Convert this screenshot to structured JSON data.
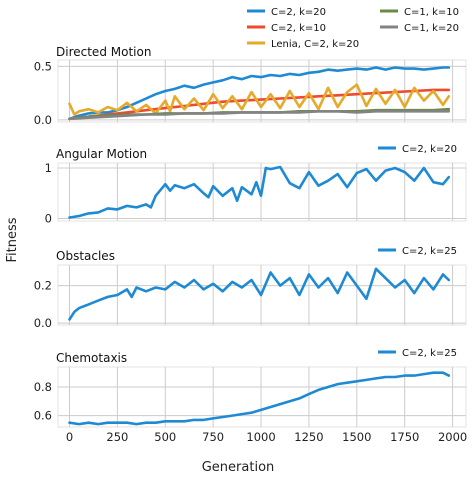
{
  "figure": {
    "ylabel": "Fitness",
    "xlabel": "Generation",
    "xticks": [
      0,
      250,
      500,
      750,
      1000,
      1250,
      1500,
      1750,
      2000
    ],
    "xlim": [
      -60,
      2070
    ],
    "colors": {
      "blue": "#1f8ad4",
      "red": "#ef4a2e",
      "gold": "#e6aa2a",
      "green": "#6a8a45",
      "gray": "#838383",
      "panel_bg": "#ffffff",
      "grid": "#cccccc"
    }
  },
  "chart_data": [
    {
      "type": "line",
      "title": "Directed Motion",
      "ylim": [
        -0.02,
        0.56
      ],
      "yticks": [
        0.0,
        0.5
      ],
      "ytick_labels": [
        "0.0",
        "0.5"
      ],
      "grid": true,
      "legend": {
        "placement": "top-right-outside",
        "entries": [
          {
            "label": "C=2, k=20",
            "color": "#1f8ad4"
          },
          {
            "label": "C=1, k=10",
            "color": "#6a8a45"
          },
          {
            "label": "C=2, k=10",
            "color": "#ef4a2e"
          },
          {
            "label": "C=1, k=20",
            "color": "#838383"
          },
          {
            "label": "Lenia, C=2, k=20",
            "color": "#e6aa2a"
          }
        ]
      },
      "series": [
        {
          "name": "C=2, k=20",
          "color": "#1f8ad4",
          "x": [
            0,
            50,
            100,
            150,
            200,
            250,
            300,
            350,
            400,
            450,
            500,
            550,
            600,
            650,
            700,
            750,
            800,
            850,
            900,
            950,
            1000,
            1050,
            1100,
            1150,
            1200,
            1250,
            1300,
            1350,
            1400,
            1450,
            1500,
            1550,
            1600,
            1650,
            1700,
            1750,
            1800,
            1850,
            1900,
            1950,
            1980
          ],
          "values": [
            0.01,
            0.04,
            0.06,
            0.07,
            0.07,
            0.09,
            0.12,
            0.16,
            0.2,
            0.24,
            0.27,
            0.29,
            0.32,
            0.3,
            0.33,
            0.35,
            0.37,
            0.4,
            0.38,
            0.41,
            0.4,
            0.42,
            0.41,
            0.43,
            0.42,
            0.44,
            0.45,
            0.47,
            0.46,
            0.47,
            0.48,
            0.47,
            0.49,
            0.47,
            0.49,
            0.48,
            0.48,
            0.47,
            0.48,
            0.49,
            0.49
          ]
        },
        {
          "name": "C=2, k=10",
          "color": "#ef4a2e",
          "x": [
            0,
            100,
            200,
            300,
            400,
            500,
            600,
            700,
            800,
            900,
            1000,
            1100,
            1200,
            1300,
            1400,
            1500,
            1600,
            1700,
            1800,
            1900,
            1980
          ],
          "values": [
            0.01,
            0.03,
            0.05,
            0.07,
            0.09,
            0.11,
            0.13,
            0.15,
            0.17,
            0.18,
            0.19,
            0.2,
            0.21,
            0.22,
            0.23,
            0.24,
            0.25,
            0.26,
            0.27,
            0.28,
            0.28
          ]
        },
        {
          "name": "Lenia, C=2, k=20",
          "color": "#e6aa2a",
          "x": [
            0,
            25,
            50,
            100,
            150,
            200,
            250,
            300,
            350,
            400,
            450,
            500,
            525,
            550,
            600,
            650,
            700,
            750,
            800,
            850,
            900,
            950,
            1000,
            1050,
            1100,
            1150,
            1200,
            1250,
            1300,
            1350,
            1400,
            1450,
            1500,
            1550,
            1600,
            1650,
            1700,
            1750,
            1800,
            1850,
            1900,
            1950,
            1980
          ],
          "values": [
            0.15,
            0.05,
            0.08,
            0.1,
            0.07,
            0.12,
            0.09,
            0.16,
            0.08,
            0.14,
            0.06,
            0.18,
            0.08,
            0.22,
            0.1,
            0.2,
            0.09,
            0.24,
            0.11,
            0.22,
            0.1,
            0.26,
            0.12,
            0.24,
            0.11,
            0.27,
            0.12,
            0.25,
            0.1,
            0.3,
            0.12,
            0.26,
            0.33,
            0.13,
            0.29,
            0.15,
            0.28,
            0.12,
            0.3,
            0.18,
            0.27,
            0.14,
            0.22
          ]
        },
        {
          "name": "C=1, k=10",
          "color": "#6a8a45",
          "x": [
            0,
            100,
            200,
            300,
            400,
            500,
            600,
            700,
            800,
            900,
            1000,
            1100,
            1200,
            1300,
            1400,
            1500,
            1600,
            1700,
            1800,
            1900,
            1980
          ],
          "values": [
            0.01,
            0.03,
            0.04,
            0.05,
            0.05,
            0.06,
            0.06,
            0.06,
            0.07,
            0.07,
            0.07,
            0.07,
            0.08,
            0.08,
            0.08,
            0.08,
            0.09,
            0.09,
            0.09,
            0.09,
            0.1
          ]
        },
        {
          "name": "C=1, k=20",
          "color": "#838383",
          "x": [
            0,
            100,
            200,
            300,
            400,
            500,
            600,
            700,
            800,
            900,
            1000,
            1100,
            1200,
            1300,
            1400,
            1500,
            1600,
            1700,
            1800,
            1900,
            1980
          ],
          "values": [
            0.01,
            0.02,
            0.03,
            0.04,
            0.05,
            0.05,
            0.06,
            0.06,
            0.06,
            0.07,
            0.07,
            0.07,
            0.07,
            0.08,
            0.08,
            0.07,
            0.08,
            0.08,
            0.08,
            0.08,
            0.08
          ]
        }
      ]
    },
    {
      "type": "line",
      "title": "Angular Motion",
      "ylim": [
        -0.05,
        1.1
      ],
      "yticks": [
        0,
        1
      ],
      "ytick_labels": [
        "0",
        "1"
      ],
      "grid": true,
      "legend": {
        "placement": "top-right-outside",
        "entries": [
          {
            "label": "C=2, k=20",
            "color": "#1f8ad4"
          }
        ]
      },
      "series": [
        {
          "name": "C=2, k=20",
          "color": "#1f8ad4",
          "x": [
            0,
            50,
            100,
            150,
            200,
            250,
            300,
            350,
            400,
            425,
            450,
            500,
            525,
            550,
            600,
            650,
            700,
            725,
            750,
            800,
            850,
            875,
            900,
            950,
            975,
            1000,
            1025,
            1050,
            1100,
            1150,
            1200,
            1250,
            1300,
            1350,
            1400,
            1450,
            1500,
            1550,
            1600,
            1650,
            1700,
            1750,
            1800,
            1850,
            1900,
            1950,
            1980
          ],
          "values": [
            0.02,
            0.05,
            0.1,
            0.12,
            0.2,
            0.18,
            0.25,
            0.22,
            0.28,
            0.22,
            0.45,
            0.68,
            0.55,
            0.66,
            0.6,
            0.68,
            0.5,
            0.42,
            0.64,
            0.45,
            0.6,
            0.35,
            0.62,
            0.48,
            0.72,
            0.45,
            1.0,
            0.98,
            1.02,
            0.7,
            0.6,
            0.92,
            0.65,
            0.75,
            0.88,
            0.62,
            0.9,
            0.98,
            0.75,
            0.95,
            1.0,
            0.92,
            0.75,
            1.0,
            0.72,
            0.68,
            0.82
          ]
        }
      ]
    },
    {
      "type": "line",
      "title": "Obstacles",
      "ylim": [
        -0.01,
        0.31
      ],
      "yticks": [
        0.0,
        0.2
      ],
      "ytick_labels": [
        "0.0",
        "0.2"
      ],
      "grid": true,
      "legend": {
        "placement": "top-right-outside",
        "entries": [
          {
            "label": "C=2, k=25",
            "color": "#1f8ad4"
          }
        ]
      },
      "series": [
        {
          "name": "C=2, k=25",
          "color": "#1f8ad4",
          "x": [
            0,
            25,
            50,
            100,
            150,
            200,
            250,
            300,
            325,
            350,
            400,
            450,
            500,
            550,
            600,
            650,
            700,
            750,
            800,
            850,
            900,
            950,
            1000,
            1050,
            1100,
            1150,
            1200,
            1250,
            1300,
            1350,
            1400,
            1450,
            1500,
            1550,
            1600,
            1650,
            1700,
            1750,
            1800,
            1850,
            1900,
            1950,
            1980
          ],
          "values": [
            0.02,
            0.06,
            0.08,
            0.1,
            0.12,
            0.14,
            0.15,
            0.18,
            0.14,
            0.19,
            0.17,
            0.19,
            0.18,
            0.22,
            0.19,
            0.23,
            0.18,
            0.21,
            0.17,
            0.22,
            0.19,
            0.23,
            0.15,
            0.27,
            0.2,
            0.24,
            0.15,
            0.26,
            0.19,
            0.24,
            0.16,
            0.27,
            0.2,
            0.13,
            0.29,
            0.24,
            0.19,
            0.23,
            0.16,
            0.24,
            0.18,
            0.26,
            0.23
          ]
        }
      ]
    },
    {
      "type": "line",
      "title": "Chemotaxis",
      "ylim": [
        0.52,
        0.94
      ],
      "yticks": [
        0.6,
        0.8
      ],
      "ytick_labels": [
        "0.6",
        "0.8"
      ],
      "grid": true,
      "legend": {
        "placement": "top-right-outside",
        "entries": [
          {
            "label": "C=2, k=25",
            "color": "#1f8ad4"
          }
        ]
      },
      "series": [
        {
          "name": "C=2, k=25",
          "color": "#1f8ad4",
          "x": [
            0,
            50,
            100,
            150,
            200,
            250,
            300,
            350,
            400,
            450,
            500,
            550,
            600,
            650,
            700,
            750,
            800,
            850,
            900,
            950,
            1000,
            1050,
            1100,
            1150,
            1200,
            1250,
            1300,
            1350,
            1400,
            1450,
            1500,
            1550,
            1600,
            1650,
            1700,
            1750,
            1800,
            1850,
            1900,
            1950,
            1980
          ],
          "values": [
            0.55,
            0.54,
            0.55,
            0.54,
            0.55,
            0.55,
            0.55,
            0.54,
            0.55,
            0.55,
            0.56,
            0.56,
            0.56,
            0.57,
            0.57,
            0.58,
            0.59,
            0.6,
            0.61,
            0.62,
            0.64,
            0.66,
            0.68,
            0.7,
            0.72,
            0.75,
            0.78,
            0.8,
            0.82,
            0.83,
            0.84,
            0.85,
            0.86,
            0.87,
            0.87,
            0.88,
            0.88,
            0.89,
            0.9,
            0.9,
            0.88
          ]
        }
      ]
    }
  ]
}
